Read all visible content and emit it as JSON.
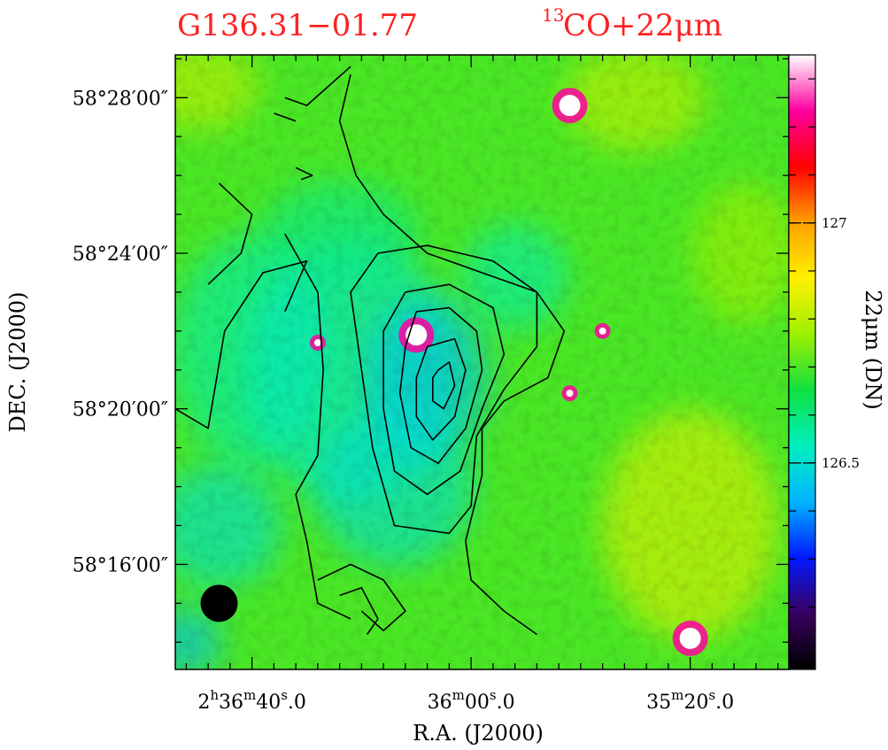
{
  "chart_data": {
    "type": "heatmap",
    "title_left": "G136.31−01.77",
    "title_right_sup": "13",
    "title_right": "CO+22μm",
    "xlabel": "R.A. (J2000)",
    "ylabel": "DEC. (J2000)",
    "x_ticks": [
      {
        "h": "2",
        "m": "36",
        "s": "40",
        "frac": "0",
        "show_hour": true,
        "ra_sec": 40
      },
      {
        "h": "",
        "m": "36",
        "s": "00",
        "frac": "0",
        "show_hour": false,
        "ra_sec": 0
      },
      {
        "h": "",
        "m": "35",
        "s": "20",
        "frac": "0",
        "show_hour": false,
        "ra_sec": -40
      }
    ],
    "y_ticks": [
      {
        "label": "58°28′00″",
        "dec_min": 28
      },
      {
        "label": "58°24′00″",
        "dec_min": 24
      },
      {
        "label": "58°20′00″",
        "dec_min": 20
      },
      {
        "label": "58°16′00″",
        "dec_min": 16
      }
    ],
    "x_range_ra_sec": [
      54,
      -58
    ],
    "y_range_dec_min": [
      13.3,
      29.1
    ],
    "colorbar": {
      "label": "22μm (DN)",
      "ticks": [
        {
          "label": "127",
          "value": 127.0
        },
        {
          "label": "126.5",
          "value": 126.5
        }
      ],
      "range": [
        126.07,
        127.35
      ],
      "colormap": [
        "#000000",
        "#3a0060",
        "#0018ff",
        "#00b4ff",
        "#00f0c0",
        "#10e040",
        "#9cf000",
        "#fff000",
        "#ffa000",
        "#ff0000",
        "#ff00a0",
        "#ffffff"
      ]
    },
    "background_value": 126.7,
    "beam": {
      "ra_sec": 46,
      "dec_min": 15.0,
      "label": "beam"
    },
    "point_sources": [
      {
        "ra_sec": -18,
        "dec_min": 27.8,
        "value": 127.5
      },
      {
        "ra_sec": 10,
        "dec_min": 21.9,
        "value": 127.5
      },
      {
        "ra_sec": -40,
        "dec_min": 14.1,
        "value": 127.5
      },
      {
        "ra_sec": -24,
        "dec_min": 22.0,
        "value": 127.2
      },
      {
        "ra_sec": -18,
        "dec_min": 20.4,
        "value": 127.1
      },
      {
        "ra_sec": 28,
        "dec_min": 21.7,
        "value": 127.0
      }
    ],
    "co_contours": [
      {
        "level": 1,
        "ra_dec": [
          [
            22,
            28.6
          ],
          [
            24,
            27.4
          ],
          [
            21,
            26.0
          ],
          [
            16,
            25.0
          ],
          [
            8,
            24.0
          ],
          [
            -2,
            23.5
          ],
          [
            -12,
            23.0
          ],
          [
            -17,
            22.0
          ],
          [
            -14,
            20.8
          ],
          [
            -6,
            20.2
          ],
          [
            -2,
            19.5
          ],
          [
            -2,
            18.3
          ],
          [
            1,
            16.6
          ],
          [
            0,
            15.6
          ],
          [
            -6,
            14.8
          ],
          [
            -12,
            14.2
          ]
        ]
      },
      {
        "level": 2,
        "ra_dec": [
          [
            17,
            24.0
          ],
          [
            8,
            24.2
          ],
          [
            -4,
            23.8
          ],
          [
            -12,
            23.0
          ],
          [
            -12,
            21.6
          ],
          [
            -6,
            20.5
          ],
          [
            -1,
            19.3
          ],
          [
            0,
            17.5
          ],
          [
            4,
            16.8
          ],
          [
            14,
            17.0
          ],
          [
            18,
            19.0
          ],
          [
            20,
            21.0
          ],
          [
            22,
            23.0
          ],
          [
            17,
            24.0
          ]
        ]
      },
      {
        "level": 3,
        "ra_dec": [
          [
            12,
            23.0
          ],
          [
            4,
            23.2
          ],
          [
            -4,
            22.6
          ],
          [
            -6,
            21.4
          ],
          [
            -2,
            20.0
          ],
          [
            2,
            18.4
          ],
          [
            8,
            17.8
          ],
          [
            14,
            18.4
          ],
          [
            16,
            20.0
          ],
          [
            16,
            22.0
          ],
          [
            12,
            23.0
          ]
        ]
      },
      {
        "level": 4,
        "ra_dec": [
          [
            10,
            22.5
          ],
          [
            4,
            22.6
          ],
          [
            -1,
            22.0
          ],
          [
            -2,
            21.0
          ],
          [
            1,
            19.5
          ],
          [
            6,
            18.6
          ],
          [
            11,
            19.0
          ],
          [
            13,
            20.4
          ],
          [
            12,
            21.6
          ],
          [
            10,
            22.5
          ]
        ]
      },
      {
        "level": 5,
        "ra_dec": [
          [
            8,
            21.6
          ],
          [
            3,
            21.8
          ],
          [
            1,
            21.0
          ],
          [
            3,
            19.8
          ],
          [
            7,
            19.2
          ],
          [
            10,
            19.8
          ],
          [
            10,
            20.8
          ],
          [
            8,
            21.6
          ]
        ]
      },
      {
        "level": 6,
        "ra_dec": [
          [
            6,
            21.0
          ],
          [
            4,
            21.2
          ],
          [
            3,
            20.6
          ],
          [
            5,
            20.0
          ],
          [
            7,
            20.2
          ],
          [
            7,
            20.8
          ],
          [
            6,
            21.0
          ]
        ]
      },
      {
        "level": 1,
        "ra_dec": [
          [
            34,
            24.5
          ],
          [
            28,
            23.0
          ],
          [
            27,
            21.0
          ],
          [
            28,
            18.8
          ],
          [
            32,
            17.8
          ],
          [
            30,
            16.6
          ],
          [
            28,
            15.0
          ],
          [
            22,
            14.6
          ]
        ]
      },
      {
        "level": 1,
        "ra_dec": [
          [
            54,
            20.0
          ],
          [
            48,
            19.5
          ],
          [
            45,
            22.0
          ],
          [
            38,
            23.5
          ],
          [
            30,
            23.8
          ],
          [
            34,
            22.5
          ]
        ]
      },
      {
        "level": 1,
        "ra_dec": [
          [
            28,
            15.6
          ],
          [
            22,
            16.0
          ],
          [
            16,
            15.6
          ],
          [
            12,
            14.8
          ],
          [
            16,
            14.3
          ],
          [
            20,
            14.8
          ]
        ]
      },
      {
        "level": 1,
        "ra_dec": [
          [
            24,
            15.2
          ],
          [
            20,
            15.4
          ],
          [
            17,
            14.6
          ],
          [
            19,
            14.2
          ]
        ]
      },
      {
        "level": 1,
        "ra_dec": [
          [
            46,
            25.8
          ],
          [
            40,
            25.0
          ],
          [
            42,
            24.0
          ],
          [
            48,
            23.2
          ]
        ]
      },
      {
        "level": 1,
        "ra_dec": [
          [
            34,
            28.0
          ],
          [
            30,
            27.8
          ],
          [
            26,
            28.3
          ],
          [
            22,
            28.8
          ]
        ]
      },
      {
        "level": 1,
        "ra_dec": [
          [
            36,
            27.6
          ],
          [
            32,
            27.4
          ]
        ]
      },
      {
        "level": 1,
        "ra_dec": [
          [
            32,
            26.2
          ],
          [
            29,
            26.0
          ],
          [
            31,
            25.9
          ]
        ]
      }
    ]
  }
}
